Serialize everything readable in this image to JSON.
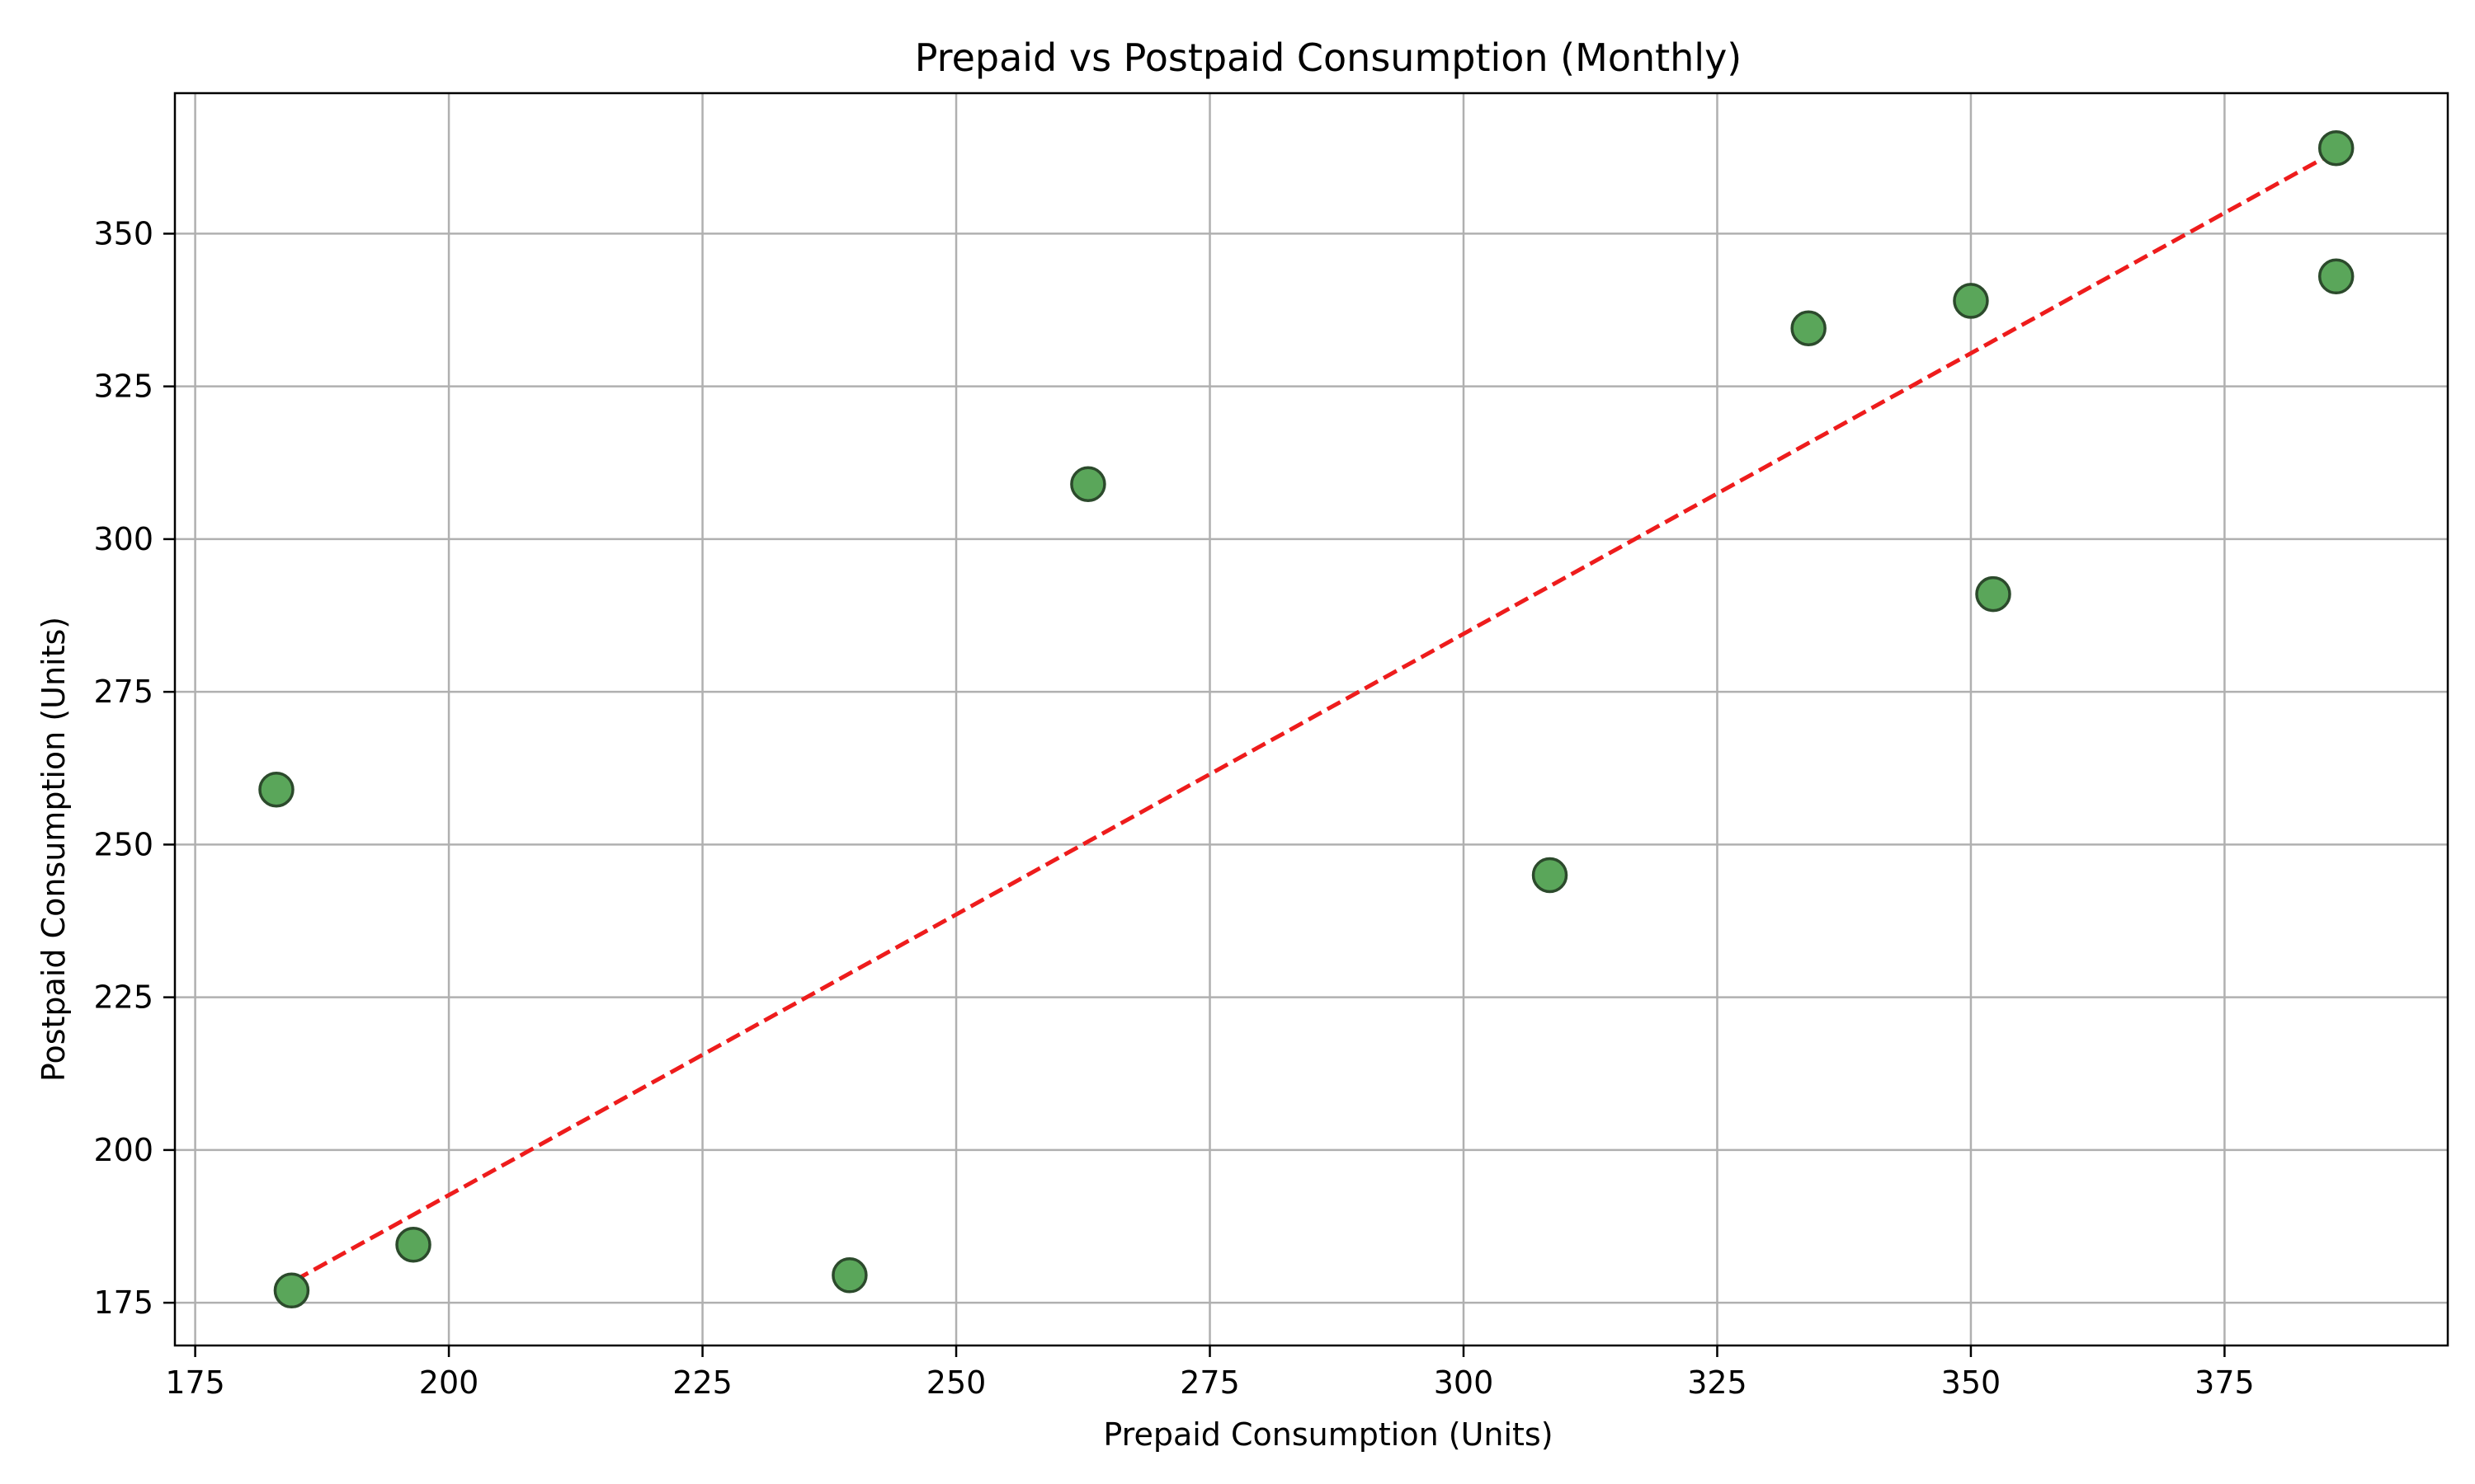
{
  "chart_data": {
    "type": "scatter",
    "title": "Prepaid vs Postpaid Consumption (Monthly)",
    "xlabel": "Prepaid Consumption (Units)",
    "ylabel": "Postpaid Consumption (Units)",
    "xlim": [
      173,
      397
    ],
    "ylim": [
      168,
      373
    ],
    "xticks": [
      175,
      200,
      225,
      250,
      275,
      300,
      325,
      350,
      375
    ],
    "yticks": [
      175,
      200,
      225,
      250,
      275,
      300,
      325,
      350
    ],
    "grid": true,
    "legend": "none",
    "points": [
      {
        "x": 183.0,
        "y": 259.0
      },
      {
        "x": 184.5,
        "y": 177.0
      },
      {
        "x": 196.5,
        "y": 184.5
      },
      {
        "x": 239.5,
        "y": 179.5
      },
      {
        "x": 263.0,
        "y": 309.0
      },
      {
        "x": 308.5,
        "y": 245.0
      },
      {
        "x": 334.0,
        "y": 334.5
      },
      {
        "x": 350.0,
        "y": 339.0
      },
      {
        "x": 352.2,
        "y": 291.0
      },
      {
        "x": 386.0,
        "y": 364.0
      },
      {
        "x": 386.0,
        "y": 343.0
      }
    ],
    "trend_line": {
      "start": {
        "x": 183.0,
        "y": 177.0
      },
      "end": {
        "x": 386.0,
        "y": 363.5
      },
      "style": "dashed"
    },
    "colors": {
      "point_fill": "#5aa65a",
      "point_edge": "#2c4a2c",
      "trend_line": "#ee1c1c",
      "grid": "#b0b0b0",
      "axes": "#000000"
    }
  }
}
